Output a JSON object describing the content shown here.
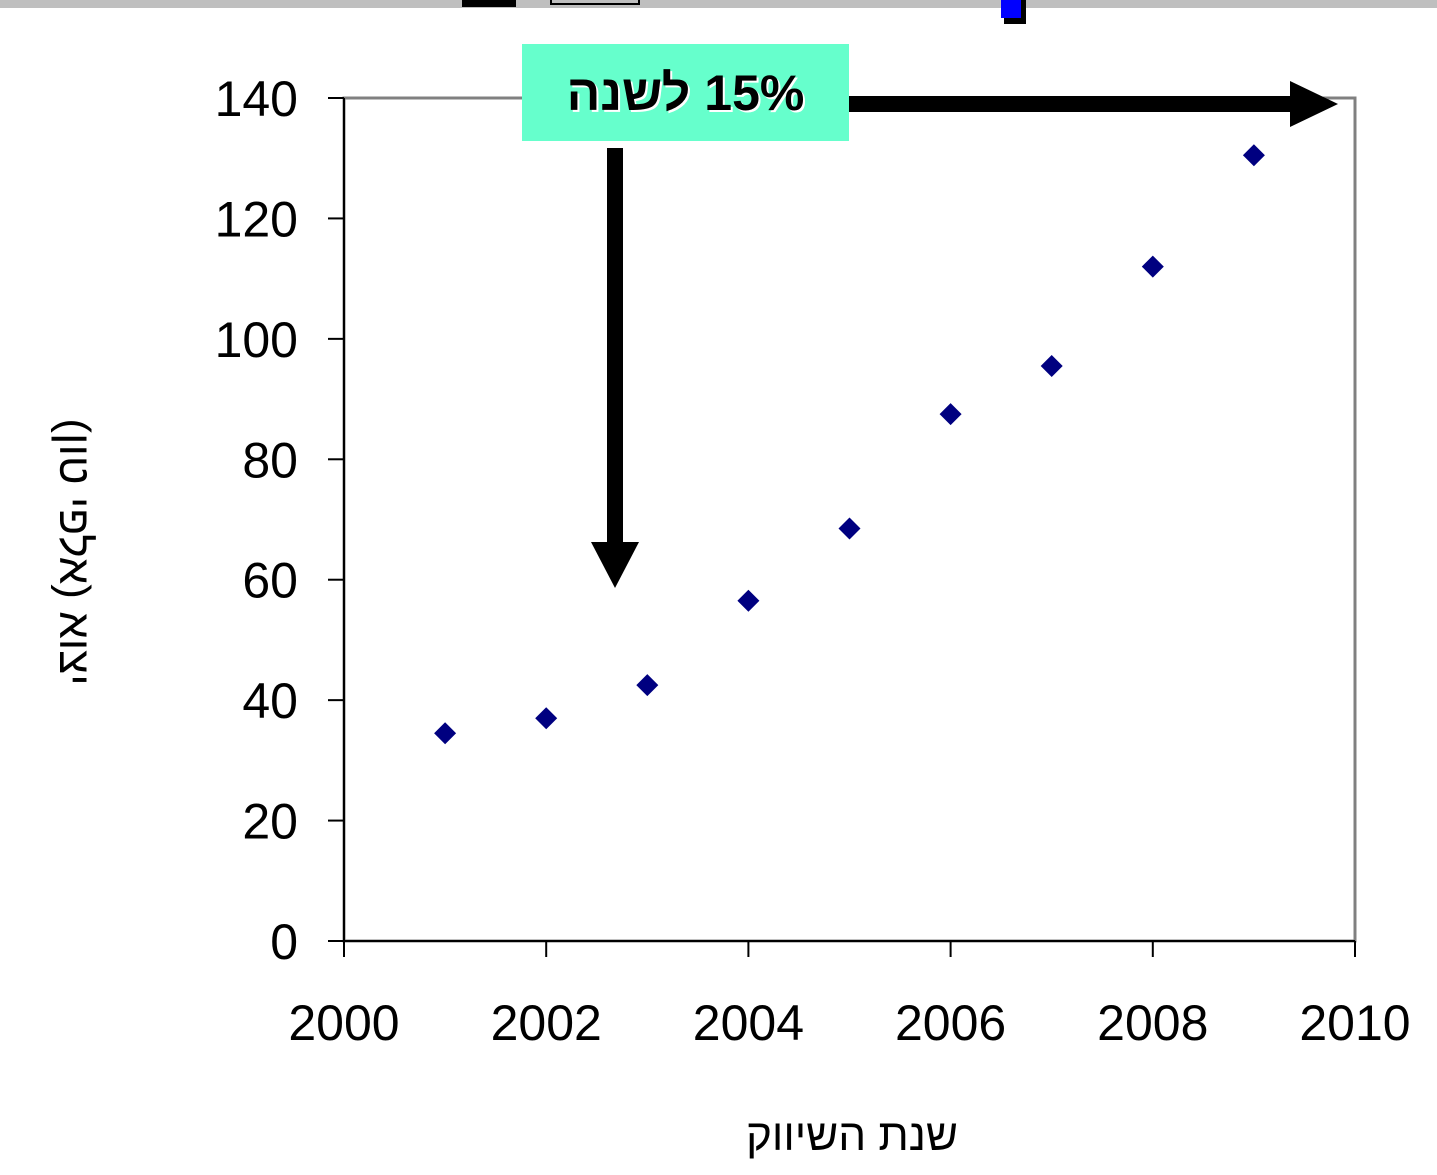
{
  "chart_data": {
    "type": "scatter",
    "title": "",
    "xlabel": "שנת השיווק",
    "ylabel": "יצוא (אלפי טון)",
    "xlim": [
      2000,
      2010
    ],
    "ylim": [
      0,
      140
    ],
    "x_ticks": [
      "2000",
      "2002",
      "2004",
      "2006",
      "2008",
      "2010"
    ],
    "y_ticks": [
      "0",
      "20",
      "40",
      "60",
      "80",
      "100",
      "120",
      "140"
    ],
    "grid": false,
    "legend": "none",
    "series": [
      {
        "x": [
          2001,
          2002,
          2003,
          2004,
          2005,
          2006,
          2007,
          2008,
          2009
        ],
        "y": [
          34.5,
          37,
          42.5,
          56.5,
          68.5,
          87.5,
          95.5,
          112,
          130.5
        ]
      }
    ],
    "annotations": [
      {
        "text": "15% לשנה"
      }
    ]
  },
  "colors": {
    "marker": "#000080",
    "callout_background": "#66ffcc",
    "arrow": "#000000",
    "plot_border": "#808080",
    "axis": "#000000"
  }
}
